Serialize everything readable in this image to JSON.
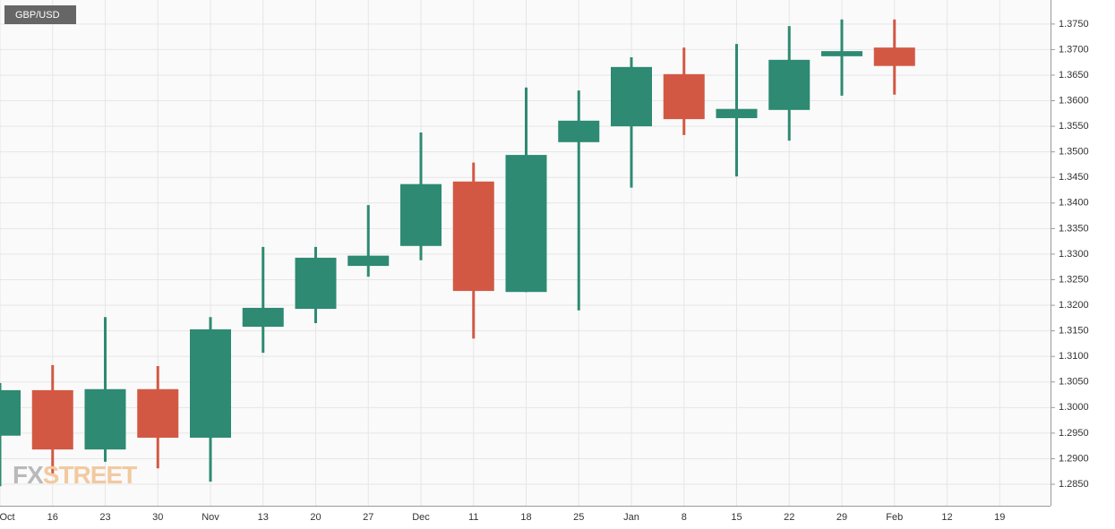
{
  "chart_data": {
    "type": "candlestick",
    "symbol": "GBP/USD",
    "watermark": [
      "FX",
      "STREET"
    ],
    "categories": [
      "Oct",
      "16",
      "23",
      "30",
      "Nov",
      "13",
      "20",
      "27",
      "Dec",
      "11",
      "18",
      "25",
      "Jan",
      "8",
      "15",
      "22",
      "29",
      "Feb",
      "12",
      "19"
    ],
    "open": [
      1.2945,
      1.3034,
      1.2918,
      1.3036,
      1.2941,
      1.3158,
      1.3193,
      1.3277,
      1.3316,
      1.3442,
      1.3226,
      1.3519,
      1.355,
      1.3652,
      1.3566,
      1.3582,
      1.3687,
      1.3704,
      null,
      null
    ],
    "high": [
      1.3048,
      1.3083,
      1.3177,
      1.3081,
      1.3177,
      1.3314,
      1.3314,
      1.3396,
      1.3538,
      1.3479,
      1.3626,
      1.362,
      1.3685,
      1.3704,
      1.3711,
      1.3746,
      1.3759,
      1.3759,
      null,
      null
    ],
    "low": [
      1.2846,
      1.2868,
      1.2894,
      1.2881,
      1.2855,
      1.3107,
      1.3165,
      1.3256,
      1.3288,
      1.3135,
      1.3226,
      1.319,
      1.343,
      1.3533,
      1.3452,
      1.3522,
      1.361,
      1.3612,
      null,
      null
    ],
    "close": [
      1.3034,
      1.2918,
      1.3036,
      1.2941,
      1.3153,
      1.3195,
      1.3293,
      1.3297,
      1.3437,
      1.3228,
      1.3494,
      1.3561,
      1.3666,
      1.3564,
      1.3584,
      1.368,
      1.3697,
      1.3668,
      null,
      null
    ],
    "up_color": "#2e8a72",
    "down_color": "#d35844",
    "ylim": [
      1.2808,
      1.3797
    ],
    "yticks": [
      {
        "value": 1.285,
        "label": "1.2850"
      },
      {
        "value": 1.29,
        "label": "1.2900"
      },
      {
        "value": 1.295,
        "label": "1.2950"
      },
      {
        "value": 1.3,
        "label": "1.3000"
      },
      {
        "value": 1.305,
        "label": "1.3050"
      },
      {
        "value": 1.31,
        "label": "1.3100"
      },
      {
        "value": 1.315,
        "label": "1.3150"
      },
      {
        "value": 1.32,
        "label": "1.3200"
      },
      {
        "value": 1.325,
        "label": "1.3250"
      },
      {
        "value": 1.33,
        "label": "1.3300"
      },
      {
        "value": 1.335,
        "label": "1.3350"
      },
      {
        "value": 1.34,
        "label": "1.3400"
      },
      {
        "value": 1.345,
        "label": "1.3450"
      },
      {
        "value": 1.35,
        "label": "1.3500"
      },
      {
        "value": 1.355,
        "label": "1.3550"
      },
      {
        "value": 1.36,
        "label": "1.3600"
      },
      {
        "value": 1.365,
        "label": "1.3650"
      },
      {
        "value": 1.37,
        "label": "1.3700"
      },
      {
        "value": 1.375,
        "label": "1.3750"
      }
    ],
    "grid": true
  }
}
